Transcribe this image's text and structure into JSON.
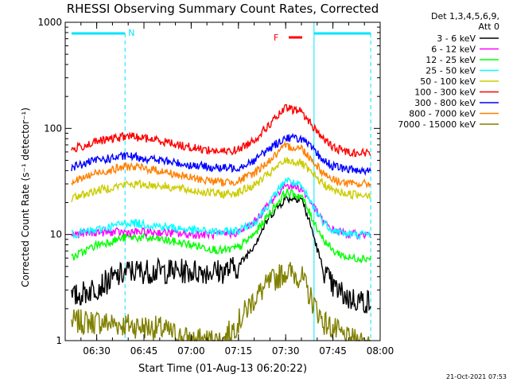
{
  "chart_data": {
    "type": "line",
    "title": "RHESSI Observing Summary Count Rates, Corrected",
    "xlabel": "Start Time (01-Aug-13 06:20:22)",
    "ylabel": "Corrected Count Rate (s⁻¹ detector⁻¹)",
    "yscale": "log",
    "ylim": [
      1,
      1000
    ],
    "xlim_minutes_after_0620": [
      0,
      100
    ],
    "x_ticks": [
      "06:30",
      "06:45",
      "07:00",
      "07:15",
      "07:30",
      "07:45",
      "08:00"
    ],
    "y_ticks": [
      "1",
      "10",
      "100",
      "1000"
    ],
    "legend_header": [
      "Det 1,3,4,5,6,9,",
      "Att 0"
    ],
    "legend_position": "right",
    "footer": "21-Oct-2021 07:53",
    "markers": {
      "night_label": "N",
      "flare_label": "F",
      "night_color": "#00e5ff",
      "flare_color": "#ff0000"
    },
    "series": [
      {
        "name": "3 - 6 keV",
        "color": "#000000",
        "x": [
          "06:22",
          "06:30",
          "06:40",
          "06:50",
          "07:00",
          "07:10",
          "07:15",
          "07:20",
          "07:25",
          "07:30",
          "07:35",
          "07:38",
          "07:42",
          "07:45",
          "07:50",
          "07:57"
        ],
        "values": [
          2.5,
          3.2,
          4.5,
          4.5,
          4.5,
          4.5,
          5,
          8,
          15,
          22,
          22,
          12,
          4.5,
          3.2,
          2.5,
          2.3
        ]
      },
      {
        "name": "6 - 12 keV",
        "color": "#ff00ff",
        "x": [
          "06:22",
          "06:30",
          "06:40",
          "06:50",
          "07:00",
          "07:10",
          "07:15",
          "07:20",
          "07:25",
          "07:30",
          "07:35",
          "07:38",
          "07:42",
          "07:45",
          "07:50",
          "07:57"
        ],
        "values": [
          10,
          10.5,
          10.5,
          10.5,
          10,
          10,
          10.5,
          13,
          20,
          30,
          27,
          20,
          13,
          11,
          10,
          10
        ]
      },
      {
        "name": "12 - 25 keV",
        "color": "#00ff00",
        "x": [
          "06:22",
          "06:30",
          "06:40",
          "06:50",
          "07:00",
          "07:10",
          "07:15",
          "07:20",
          "07:25",
          "07:30",
          "07:35",
          "07:38",
          "07:42",
          "07:45",
          "07:50",
          "07:57"
        ],
        "values": [
          6,
          8,
          9.5,
          9,
          8,
          7,
          7.5,
          10,
          16,
          25,
          23,
          15,
          9,
          7,
          6,
          6
        ]
      },
      {
        "name": "25 - 50 keV",
        "color": "#00ffff",
        "x": [
          "06:22",
          "06:30",
          "06:40",
          "06:50",
          "07:00",
          "07:10",
          "07:15",
          "07:20",
          "07:25",
          "07:30",
          "07:35",
          "07:38",
          "07:42",
          "07:45",
          "07:50",
          "07:57"
        ],
        "values": [
          10,
          11,
          13,
          12,
          11,
          10.5,
          11,
          13,
          20,
          33,
          28,
          20,
          13,
          11,
          10,
          10
        ]
      },
      {
        "name": "50 - 100 keV",
        "color": "#cccc00",
        "x": [
          "06:22",
          "06:30",
          "06:40",
          "06:50",
          "07:00",
          "07:10",
          "07:15",
          "07:20",
          "07:25",
          "07:30",
          "07:35",
          "07:38",
          "07:42",
          "07:45",
          "07:50",
          "07:57"
        ],
        "values": [
          22,
          26,
          30,
          29,
          26,
          24,
          25,
          29,
          38,
          50,
          47,
          38,
          30,
          26,
          24,
          24
        ]
      },
      {
        "name": "100 - 300 keV",
        "color": "#ff0000",
        "x": [
          "06:22",
          "06:30",
          "06:40",
          "06:50",
          "07:00",
          "07:10",
          "07:15",
          "07:20",
          "07:25",
          "07:30",
          "07:35",
          "07:38",
          "07:42",
          "07:45",
          "07:50",
          "07:57"
        ],
        "values": [
          63,
          75,
          85,
          77,
          66,
          60,
          63,
          78,
          110,
          155,
          145,
          110,
          80,
          66,
          60,
          58
        ]
      },
      {
        "name": "300 - 800 keV",
        "color": "#0000ff",
        "x": [
          "06:22",
          "06:30",
          "06:40",
          "06:50",
          "07:00",
          "07:10",
          "07:15",
          "07:20",
          "07:25",
          "07:30",
          "07:35",
          "07:38",
          "07:42",
          "07:45",
          "07:50",
          "07:57"
        ],
        "values": [
          43,
          50,
          55,
          50,
          45,
          42,
          43,
          50,
          65,
          82,
          80,
          66,
          50,
          44,
          41,
          40
        ]
      },
      {
        "name": "800 - 7000 keV",
        "color": "#ff8000",
        "x": [
          "06:22",
          "06:30",
          "06:40",
          "06:50",
          "07:00",
          "07:10",
          "07:15",
          "07:20",
          "07:25",
          "07:30",
          "07:35",
          "07:38",
          "07:42",
          "07:45",
          "07:50",
          "07:57"
        ],
        "values": [
          31,
          38,
          44,
          40,
          34,
          31,
          32,
          38,
          50,
          68,
          65,
          52,
          38,
          33,
          30,
          30
        ]
      },
      {
        "name": "7000 - 15000 keV",
        "color": "#808000",
        "x": [
          "06:22",
          "06:30",
          "06:40",
          "06:50",
          "07:00",
          "07:10",
          "07:15",
          "07:20",
          "07:25",
          "07:30",
          "07:35",
          "07:38",
          "07:42",
          "07:45",
          "07:50",
          "07:57"
        ],
        "values": [
          1.5,
          1.5,
          1.4,
          1.3,
          1,
          1,
          1.5,
          2.5,
          3.5,
          4.5,
          4,
          2.5,
          1.5,
          1.3,
          1,
          1
        ]
      }
    ]
  }
}
